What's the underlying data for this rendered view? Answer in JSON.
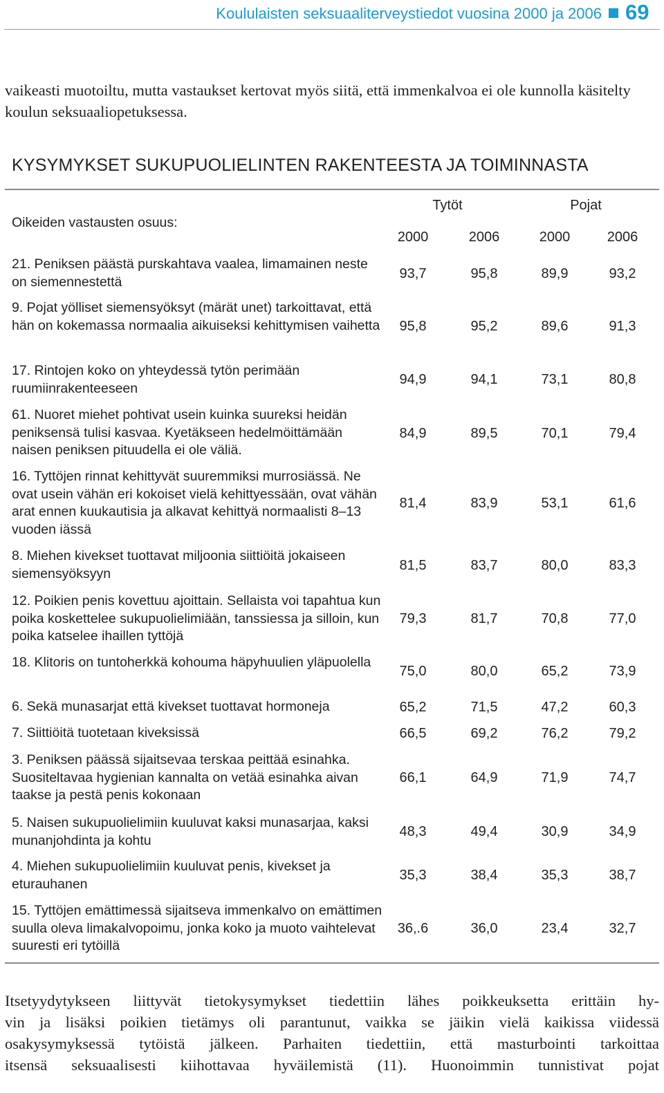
{
  "header": {
    "title": "Koululaisten seksuaaliterveystiedot vuosina 2000 ja 2006",
    "page_number": "69",
    "accent_color": "#1a9ad6"
  },
  "intro_text": "vaikeasti muotoiltu, mutta vastaukset kertovat myös siitä, että immenkalvoa ei ole kunnolla käsitelty koulun seksuaaliopetuksessa.",
  "section_heading": "KYSYMYKSET SUKUPUOLIELINTEN RAKENTEESTA JA TOIMINNASTA",
  "table": {
    "subheading": "Oikeiden vastausten osuus:",
    "groups": [
      "Tytöt",
      "Pojat"
    ],
    "years": [
      "2000",
      "2006",
      "2000",
      "2006"
    ],
    "rows": [
      {
        "question": "21. Peniksen päästä purskahtava vaalea, limamainen neste on siemennestettä",
        "values": [
          "93,7",
          "95,8",
          "89,9",
          "93,2"
        ]
      },
      {
        "question": "9. Pojat yölliset siemensyöksyt (märät unet) tarkoittavat, että hän on kokemassa normaalia aikuiseksi kehittymisen vaihetta",
        "values": [
          "95,8",
          "95,2",
          "89,6",
          "91,3"
        ]
      },
      {
        "question": "17. Rintojen koko on yhteydessä tytön perimään ruumiinrakenteeseen",
        "values": [
          "94,9",
          "94,1",
          "73,1",
          "80,8"
        ]
      },
      {
        "question": "61. Nuoret miehet pohtivat usein kuinka suureksi heidän peniksensä tulisi kasvaa. Kyetäkseen hedelmöittämään naisen peniksen pituudella ei ole väliä.",
        "values": [
          "84,9",
          "89,5",
          "70,1",
          "79,4"
        ]
      },
      {
        "question": "16. Tyttöjen rinnat kehittyvät suuremmiksi murrosiässä. Ne ovat usein vähän eri kokoiset vielä kehittyessään, ovat vähän arat ennen kuukautisia ja alkavat kehittyä normaalisti 8–13 vuoden iässä",
        "values": [
          "81,4",
          "83,9",
          "53,1",
          "61,6"
        ]
      },
      {
        "question": "8. Miehen kivekset tuottavat miljoonia siittiöitä jokaiseen siemensyöksyyn",
        "values": [
          "81,5",
          "83,7",
          "80,0",
          "83,3"
        ]
      },
      {
        "question": "12. Poikien penis kovettuu ajoittain. Sellaista voi tapahtua kun poika koskettelee sukupuolielimiään, tanssiessa ja silloin, kun poika katselee ihaillen tyttöjä",
        "values": [
          "79,3",
          "81,7",
          "70,8",
          "77,0"
        ]
      },
      {
        "question": "18. Klitoris on tuntoherkkä kohouma häpyhuulien yläpuolella",
        "values": [
          "75,0",
          "80,0",
          "65,2",
          "73,9"
        ]
      },
      {
        "question": "6. Sekä munasarjat että kivekset tuottavat hormoneja",
        "values": [
          "65,2",
          "71,5",
          "47,2",
          "60,3"
        ]
      },
      {
        "question": "7. Siittiöitä tuotetaan kiveksissä",
        "values": [
          "66,5",
          "69,2",
          "76,2",
          "79,2"
        ]
      },
      {
        "question": "3. Peniksen päässä sijaitsevaa terskaa peittää esinahka. Suositeltavaa hygienian kannalta on vetää esinahka aivan taakse ja pestä penis kokonaan",
        "values": [
          "66,1",
          "64,9",
          "71,9",
          "74,7"
        ]
      },
      {
        "question": "5. Naisen sukupuolielimiin kuuluvat kaksi munasarjaa, kaksi munanjohdinta ja kohtu",
        "values": [
          "48,3",
          "49,4",
          "30,9",
          "34,9"
        ]
      },
      {
        "question": "4. Miehen sukupuolielimiin kuuluvat penis, kivekset ja eturauhanen",
        "values": [
          "35,3",
          "38,4",
          "35,3",
          "38,7"
        ]
      },
      {
        "question": "15. Tyttöjen emättimessä sijaitseva immenkalvo on emättimen suulla oleva limakalvopoimu, jonka koko ja muoto vaihtelevat suuresti eri tytöillä",
        "values": [
          "36,.6",
          "36,0",
          "23,4",
          "32,7"
        ]
      }
    ]
  },
  "outro_lines": [
    "Itsetyydytykseen liittyvät tietokysymykset tiedettiin lähes poikkeuksetta erittäin hy-",
    "vin ja lisäksi poikien tietämys oli parantunut, vaikka se jäikin vielä kaikissa viidessä",
    "osakysymyksessä tytöistä jälkeen. Parhaiten tiedettiin, että masturbointi tarkoittaa",
    "itsensä seksuaalisesti kiihottavaa hyväilemistä (11). Huonoimmin tunnistivat pojat"
  ]
}
